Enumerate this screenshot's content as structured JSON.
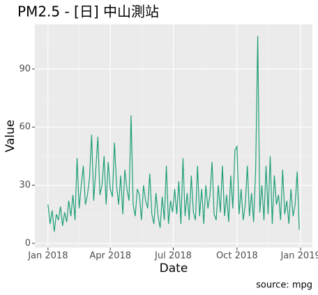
{
  "chart_data": {
    "type": "line",
    "title": "PM2.5 - [日]  中山測站",
    "x_label": "Date",
    "y_label": "Value",
    "caption": "source: mpg",
    "series": [
      {
        "color": "#1b9e77",
        "x": [
          0,
          3,
          6,
          9,
          12,
          15,
          18,
          21,
          24,
          27,
          30,
          33,
          36,
          39,
          42,
          45,
          48,
          51,
          54,
          57,
          60,
          63,
          66,
          69,
          72,
          75,
          78,
          81,
          84,
          87,
          90,
          93,
          96,
          99,
          102,
          105,
          108,
          111,
          114,
          117,
          120,
          123,
          126,
          129,
          132,
          135,
          138,
          141,
          144,
          147,
          150,
          153,
          156,
          159,
          162,
          165,
          168,
          171,
          174,
          177,
          180,
          183,
          186,
          189,
          192,
          195,
          198,
          201,
          204,
          207,
          210,
          213,
          216,
          219,
          222,
          225,
          228,
          231,
          234,
          237,
          240,
          243,
          246,
          249,
          252,
          255,
          258,
          261,
          264,
          267,
          270,
          273,
          276,
          279,
          282,
          285,
          288,
          291,
          294,
          297,
          300,
          303,
          306,
          309,
          312,
          315,
          318,
          321,
          324,
          327,
          330,
          333,
          336,
          339,
          342,
          345,
          348,
          351,
          354,
          357,
          360,
          363
        ],
        "values": [
          20,
          10,
          17,
          6,
          15,
          12,
          19,
          9,
          16,
          11,
          22,
          14,
          25,
          12,
          44,
          18,
          30,
          40,
          20,
          25,
          34,
          56,
          22,
          38,
          55,
          25,
          30,
          45,
          20,
          42,
          28,
          24,
          52,
          30,
          20,
          35,
          15,
          38,
          28,
          22,
          66,
          20,
          14,
          28,
          25,
          12,
          30,
          22,
          18,
          36,
          15,
          10,
          26,
          14,
          8,
          24,
          12,
          40,
          10,
          22,
          16,
          28,
          15,
          32,
          10,
          44,
          14,
          26,
          12,
          35,
          16,
          12,
          40,
          14,
          28,
          10,
          30,
          18,
          25,
          42,
          15,
          12,
          30,
          16,
          40,
          14,
          25,
          11,
          35,
          18,
          48,
          50,
          15,
          28,
          12,
          20,
          40,
          14,
          26,
          11,
          38,
          107,
          16,
          30,
          12,
          40,
          15,
          45,
          10,
          35,
          20,
          25,
          12,
          38,
          15,
          22,
          10,
          28,
          14,
          20,
          37,
          7
        ]
      }
    ],
    "xlim": [
      -19,
      382
    ],
    "xticks": [
      {
        "value": 0,
        "label": "Jan 2018"
      },
      {
        "value": 90,
        "label": "Apr 2018"
      },
      {
        "value": 181,
        "label": "Jul 2018"
      },
      {
        "value": 273,
        "label": "Oct 2018"
      },
      {
        "value": 365,
        "label": "Jan 2019"
      }
    ],
    "xminor": [
      45,
      136,
      227,
      319
    ],
    "ylim": [
      -2.2,
      113
    ],
    "yticks": [
      0,
      30,
      60,
      90
    ],
    "yminor": [
      15,
      45,
      75,
      105
    ],
    "grid": true
  }
}
